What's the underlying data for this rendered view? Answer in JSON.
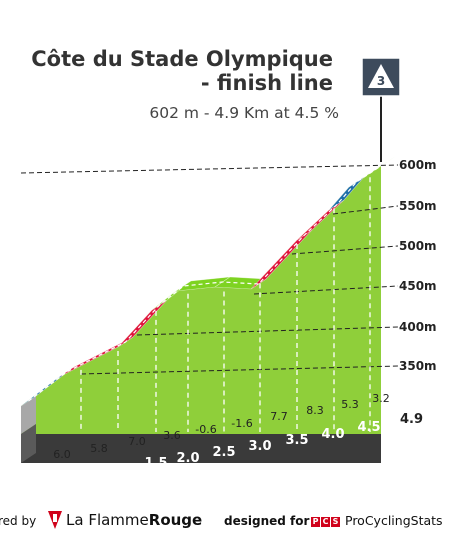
{
  "climb": {
    "name_line1": "Côte du Stade Olympique",
    "name_line2": "- finish line",
    "stats": "602 m - 4.9 Km at 4.5 %",
    "category_badge": "3"
  },
  "chart_data": {
    "type": "area",
    "x_unit": "km",
    "y_unit": "m",
    "total_km_label": "4.9",
    "km_markers": [
      "0.5",
      "1.0",
      "1.5",
      "2.0",
      "2.5",
      "3.0",
      "3.5",
      "4.0",
      "4.5"
    ],
    "altitude_ticks": [
      "350m",
      "400m",
      "450m",
      "500m",
      "550m",
      "600m"
    ],
    "segments": [
      {
        "gradient": "6.0",
        "color": "#1e6ea8"
      },
      {
        "gradient": "5.8",
        "color": "#e0143c"
      },
      {
        "gradient": "7.0",
        "color": "#e0143c"
      },
      {
        "gradient": "3.6",
        "color": "#7ed321"
      },
      {
        "gradient": "-0.6",
        "color": "#7ed321"
      },
      {
        "gradient": "-1.6",
        "color": "#7ed321"
      },
      {
        "gradient": "7.7",
        "color": "#e0143c"
      },
      {
        "gradient": "8.3",
        "color": "#e0143c"
      },
      {
        "gradient": "5.3",
        "color": "#1e6ea8"
      },
      {
        "gradient": "3.2",
        "color": "#7ed321"
      }
    ],
    "fill_color": "#8fcf3a",
    "side_color": "#a8a8a8",
    "base_color": "#3a3a3a"
  },
  "footer": {
    "powered_by": "red by",
    "brand_part1": "La Flamme",
    "brand_part2": "Rouge",
    "designed_for": "designed for",
    "pcs_badge": [
      "P",
      "C",
      "S"
    ],
    "pcs_name": "ProCyclingStats"
  }
}
